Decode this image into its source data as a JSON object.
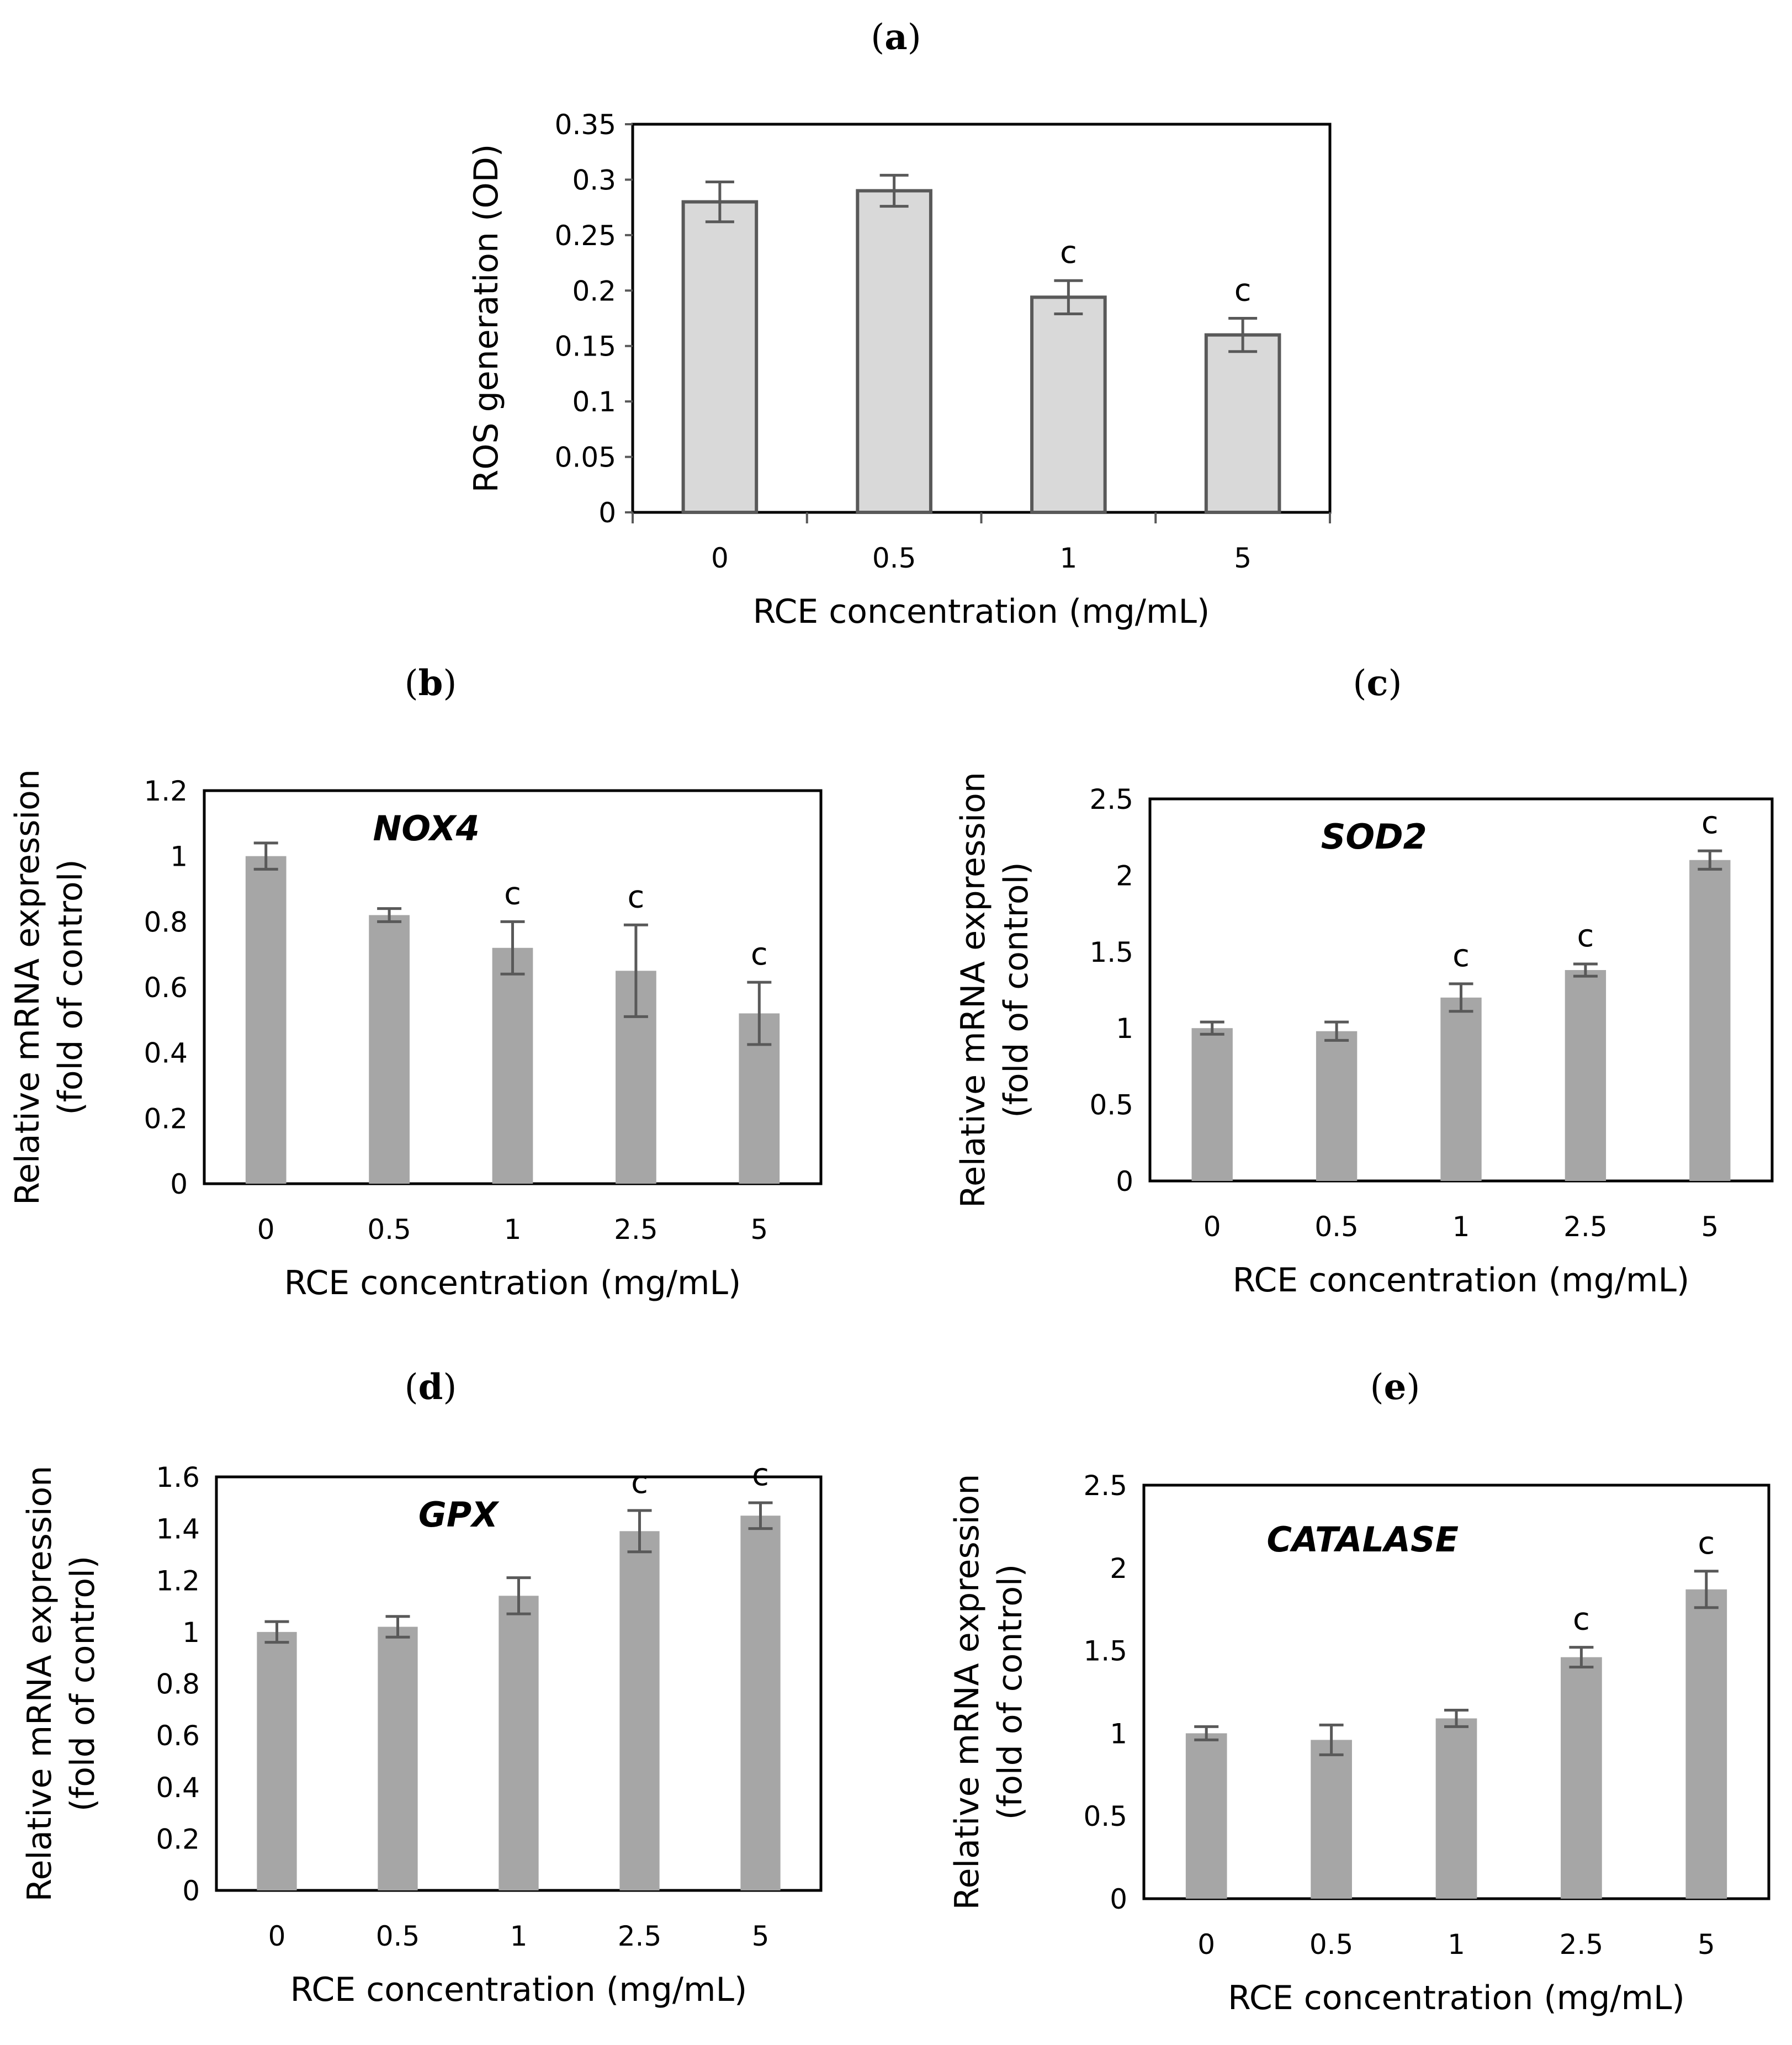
{
  "panels": {
    "a": "a",
    "b": "b",
    "c": "c",
    "d": "d",
    "e": "e"
  },
  "colors": {
    "bar_light": "#d9d9d9",
    "bar_dark": "#a6a6a6",
    "outline": "#595959",
    "error": "#595959",
    "frame": "#000000"
  },
  "chart_data": [
    {
      "id": "a",
      "type": "bar",
      "title": "",
      "categories": [
        "0",
        "0.5",
        "1",
        "5"
      ],
      "values": [
        0.28,
        0.29,
        0.194,
        0.16
      ],
      "errors": [
        0.018,
        0.014,
        0.015,
        0.015
      ],
      "significance": [
        "",
        "",
        "c",
        "c"
      ],
      "xlabel": "RCE concentration (mg/mL)",
      "ylabel": [
        "ROS generation (OD)"
      ],
      "ylim": [
        0,
        0.35
      ],
      "yticks": [
        "0",
        "0.05",
        "0.1",
        "0.15",
        "0.2",
        "0.25",
        "0.3",
        "0.35"
      ],
      "style": "light"
    },
    {
      "id": "b",
      "type": "bar",
      "title": "NOX4",
      "categories": [
        "0",
        "0.5",
        "1",
        "2.5",
        "5"
      ],
      "values": [
        1.0,
        0.82,
        0.72,
        0.65,
        0.52
      ],
      "errors": [
        0.04,
        0.02,
        0.08,
        0.14,
        0.095
      ],
      "significance": [
        "",
        "",
        "c",
        "c",
        "c"
      ],
      "xlabel": "RCE concentration (mg/mL)",
      "ylabel": [
        "Relative mRNA expression",
        "(fold of control)"
      ],
      "ylim": [
        0,
        1.2
      ],
      "yticks": [
        "0",
        "0.2",
        "0.4",
        "0.6",
        "0.8",
        "1",
        "1.2"
      ],
      "style": "dark"
    },
    {
      "id": "c",
      "type": "bar",
      "title": "SOD2",
      "categories": [
        "0",
        "0.5",
        "1",
        "2.5",
        "5"
      ],
      "values": [
        1.0,
        0.98,
        1.2,
        1.38,
        2.1
      ],
      "errors": [
        0.04,
        0.06,
        0.09,
        0.04,
        0.06
      ],
      "significance": [
        "",
        "",
        "c",
        "c",
        "c"
      ],
      "xlabel": "RCE concentration (mg/mL)",
      "ylabel": [
        "Relative mRNA expression",
        "(fold of control)"
      ],
      "ylim": [
        0,
        2.5
      ],
      "yticks": [
        "0",
        "0.5",
        "1",
        "1.5",
        "2",
        "2.5"
      ],
      "style": "dark"
    },
    {
      "id": "d",
      "type": "bar",
      "title": "GPX",
      "categories": [
        "0",
        "0.5",
        "1",
        "2.5",
        "5"
      ],
      "values": [
        1.0,
        1.02,
        1.14,
        1.39,
        1.45
      ],
      "errors": [
        0.04,
        0.04,
        0.07,
        0.08,
        0.05
      ],
      "significance": [
        "",
        "",
        "",
        "c",
        "c"
      ],
      "xlabel": "RCE concentration (mg/mL)",
      "ylabel": [
        "Relative mRNA expression",
        "(fold of control)"
      ],
      "ylim": [
        0,
        1.6
      ],
      "yticks": [
        "0",
        "0.2",
        "0.4",
        "0.6",
        "0.8",
        "1",
        "1.2",
        "1.4",
        "1.6"
      ],
      "style": "dark"
    },
    {
      "id": "e",
      "type": "bar",
      "title": "CATALASE",
      "categories": [
        "0",
        "0.5",
        "1",
        "2.5",
        "5"
      ],
      "values": [
        1.0,
        0.96,
        1.09,
        1.46,
        1.87
      ],
      "errors": [
        0.04,
        0.09,
        0.05,
        0.06,
        0.11
      ],
      "significance": [
        "",
        "",
        "",
        "c",
        "c"
      ],
      "xlabel": "RCE concentration (mg/mL)",
      "ylabel": [
        "Relative mRNA expression",
        "(fold of control)"
      ],
      "ylim": [
        0,
        2.5
      ],
      "yticks": [
        "0",
        "0.5",
        "1",
        "1.5",
        "2",
        "2.5"
      ],
      "style": "dark"
    }
  ]
}
